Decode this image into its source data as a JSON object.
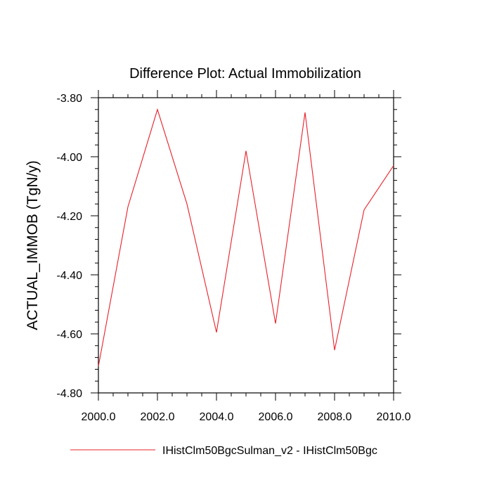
{
  "chart_data": {
    "type": "line",
    "title": "Difference Plot: Actual Immobilization",
    "xlabel": "",
    "ylabel": "ACTUAL_IMMOB  (TgN/y)",
    "xlim": [
      2000,
      2010
    ],
    "ylim": [
      -4.8,
      -3.8
    ],
    "x_ticks": [
      2000,
      2002,
      2004,
      2006,
      2008,
      2010
    ],
    "x_tick_labels": [
      "2000.0",
      "2002.0",
      "2004.0",
      "2006.0",
      "2008.0",
      "2010.0"
    ],
    "y_ticks": [
      -3.8,
      -4.0,
      -4.2,
      -4.4,
      -4.6,
      -4.8
    ],
    "y_tick_labels": [
      "-3.80",
      "-4.00",
      "-4.20",
      "-4.40",
      "-4.60",
      "-4.80"
    ],
    "grid": false,
    "legend_position": "bottom",
    "series": [
      {
        "name": "IHistClm50BgcSulman_v2 - IHistClm50Bgc",
        "color": "#e8212b",
        "x": [
          2000,
          2001,
          2002,
          2003,
          2004,
          2005,
          2006,
          2007,
          2008,
          2009,
          2010
        ],
        "y": [
          -4.71,
          -4.17,
          -3.84,
          -4.16,
          -4.595,
          -3.98,
          -4.565,
          -3.85,
          -4.655,
          -4.18,
          -4.03
        ]
      }
    ]
  }
}
